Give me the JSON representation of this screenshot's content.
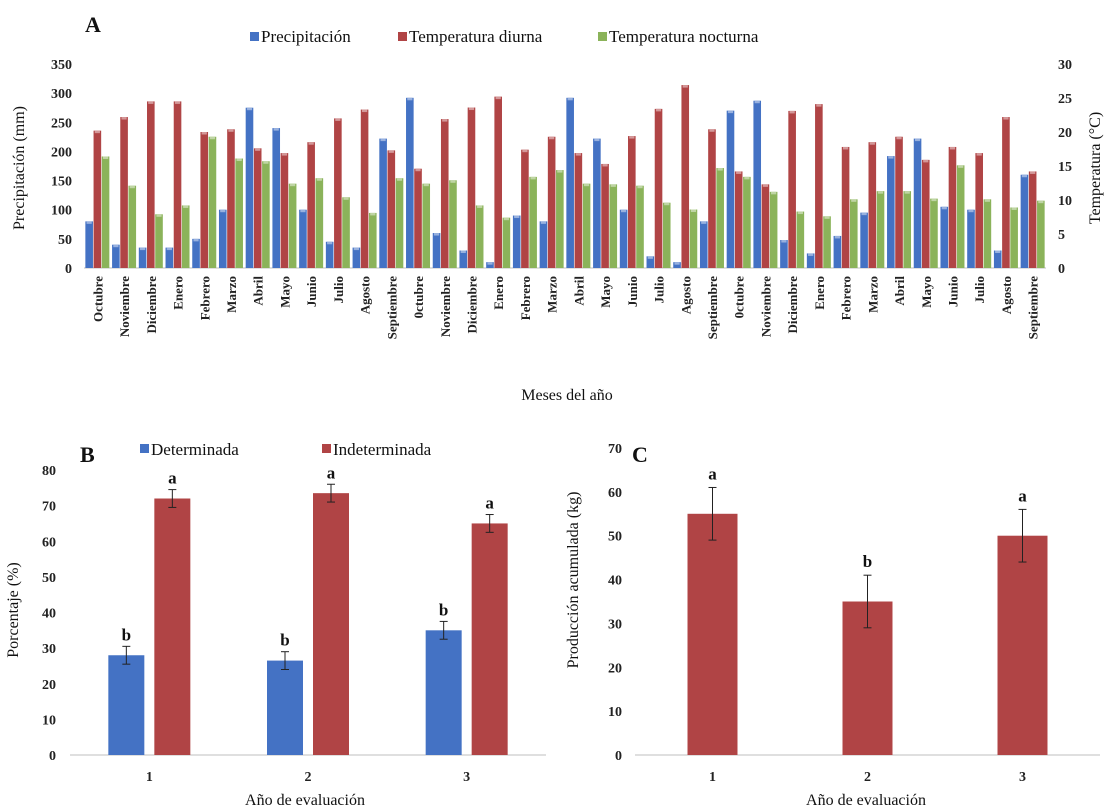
{
  "colors": {
    "blue": "#4472c4",
    "red": "#b04445",
    "green": "#8bb35a"
  },
  "chart_data": [
    {
      "panel": "A",
      "type": "bar",
      "xlabel": "Meses del año",
      "ylabel": "Precipitación (mm)",
      "y2label": "Temperatura (°C)",
      "ylim": [
        0,
        350
      ],
      "y2lim": [
        0,
        30
      ],
      "yticks": [
        "0",
        "50",
        "100",
        "150",
        "200",
        "250",
        "300",
        "350"
      ],
      "y2ticks": [
        "0",
        "5",
        "10",
        "15",
        "20",
        "25",
        "30"
      ],
      "legend_position": "top",
      "categories": [
        "Octubre",
        "Noviembre",
        "Diciembre",
        "Enero",
        "Febrero",
        "Marzo",
        "Abril",
        "Mayo",
        "Junio",
        "Julio",
        "Agosto",
        "Septiembre",
        "0ctubre",
        "Noviembre",
        "Diciembre",
        "Enero",
        "Febrero",
        "Marzo",
        "Abril",
        "Mayo",
        "Junio",
        "Julio",
        "Agosto",
        "Septiembre",
        "0ctubre",
        "Noviembre",
        "Diciembre",
        "Enero",
        "Febrero",
        "Marzo",
        "Abril",
        "Mayo",
        "Junio",
        "Julio",
        "Agosto",
        "Septiembre"
      ],
      "series": [
        {
          "name": "Precipitación",
          "axis": "left",
          "color": "blue",
          "values": [
            80,
            40,
            35,
            35,
            50,
            100,
            275,
            240,
            100,
            45,
            35,
            222,
            292,
            60,
            30,
            10,
            90,
            80,
            292,
            222,
            100,
            20,
            10,
            80,
            270,
            287,
            48,
            25,
            55,
            95,
            192,
            222,
            105,
            100,
            30,
            160
          ]
        },
        {
          "name": "Temperatura diurna",
          "axis": "right",
          "color": "red",
          "values": [
            20.2,
            22.2,
            24.5,
            24.5,
            20.0,
            20.4,
            17.6,
            16.9,
            18.5,
            22.0,
            23.3,
            17.3,
            14.6,
            21.9,
            23.6,
            25.2,
            17.4,
            19.3,
            16.9,
            15.3,
            19.4,
            23.4,
            26.9,
            20.4,
            14.2,
            12.3,
            23.1,
            24.1,
            17.8,
            18.5,
            19.3,
            15.9,
            17.8,
            16.9,
            22.2,
            14.2
          ]
        },
        {
          "name": "Temperatura nocturna",
          "axis": "right",
          "color": "green",
          "values": [
            16.4,
            12.1,
            7.9,
            9.2,
            19.3,
            16.1,
            15.7,
            12.4,
            13.2,
            10.4,
            8.1,
            13.2,
            12.4,
            12.9,
            9.2,
            7.4,
            13.4,
            14.4,
            12.4,
            12.3,
            12.1,
            9.6,
            8.6,
            14.7,
            13.4,
            11.2,
            8.3,
            7.6,
            10.1,
            11.3,
            11.3,
            10.2,
            15.1,
            10.1,
            8.9,
            9.9
          ]
        }
      ],
      "error_bars": false
    },
    {
      "panel": "B",
      "type": "bar",
      "xlabel": "Año de evaluación",
      "ylabel": "Porcentaje (%)",
      "ylim": [
        0,
        80
      ],
      "yticks": [
        "0",
        "10",
        "20",
        "30",
        "40",
        "50",
        "60",
        "70",
        "80"
      ],
      "categories": [
        "1",
        "2",
        "3"
      ],
      "legend_position": "top",
      "series": [
        {
          "name": "Determinada",
          "color": "blue",
          "values": [
            28,
            26.5,
            35
          ],
          "errors": [
            2.5,
            2.5,
            2.5
          ],
          "letters": [
            "b",
            "b",
            "b"
          ]
        },
        {
          "name": "Indeterminada",
          "color": "red",
          "values": [
            72,
            73.5,
            65
          ],
          "errors": [
            2.5,
            2.5,
            2.5
          ],
          "letters": [
            "a",
            "a",
            "a"
          ]
        }
      ]
    },
    {
      "panel": "C",
      "type": "bar",
      "xlabel": "Año de evaluación",
      "ylabel": "Producción acumulada (kg)",
      "ylim": [
        0,
        70
      ],
      "yticks": [
        "0",
        "10",
        "20",
        "30",
        "40",
        "50",
        "60",
        "70"
      ],
      "categories": [
        "1",
        "2",
        "3"
      ],
      "series": [
        {
          "name": "",
          "color": "red",
          "values": [
            55,
            35,
            50
          ],
          "errors": [
            6,
            6,
            6
          ],
          "letters": [
            "a",
            "b",
            "a"
          ]
        }
      ]
    }
  ]
}
